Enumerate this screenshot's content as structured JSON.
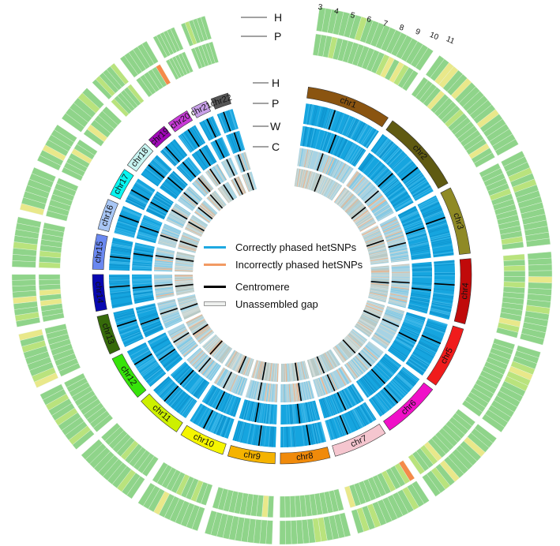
{
  "track_labels": {
    "outer_h": "H",
    "outer_p": "P",
    "inner_h": "H",
    "inner_p": "P",
    "inner_w": "W",
    "inner_c": "C"
  },
  "scale_ticks": [
    "3",
    "4",
    "5",
    "6",
    "7",
    "8",
    "9",
    "10",
    "11"
  ],
  "chromosomes": [
    {
      "name": "chr1",
      "color": "#8a5410"
    },
    {
      "name": "chr2",
      "color": "#5f5a12"
    },
    {
      "name": "chr3",
      "color": "#8f8a25"
    },
    {
      "name": "chr4",
      "color": "#c00a0a"
    },
    {
      "name": "chr5",
      "color": "#f01c1c"
    },
    {
      "name": "chr6",
      "color": "#f010c8"
    },
    {
      "name": "chr7",
      "color": "#f5c6cf"
    },
    {
      "name": "chr8",
      "color": "#f08a0a"
    },
    {
      "name": "chr9",
      "color": "#f5b300"
    },
    {
      "name": "chr10",
      "color": "#f5f500"
    },
    {
      "name": "chr11",
      "color": "#cdf000"
    },
    {
      "name": "chr12",
      "color": "#36e30a"
    },
    {
      "name": "chr13",
      "color": "#366a0a"
    },
    {
      "name": "chr14",
      "color": "#0808b0"
    },
    {
      "name": "chr15",
      "color": "#6a88f0"
    },
    {
      "name": "chr16",
      "color": "#a8c6f5"
    },
    {
      "name": "chr17",
      "color": "#08f5f0"
    },
    {
      "name": "chr18",
      "color": "#c8f5f2"
    },
    {
      "name": "chr19",
      "color": "#a008b8"
    },
    {
      "name": "chr20",
      "color": "#c83ad8"
    },
    {
      "name": "chr21",
      "color": "#c8a0e8"
    },
    {
      "name": "chr22",
      "color": "#555555"
    }
  ],
  "legend": {
    "correct": {
      "label": "Correctly phased hetSNPs",
      "color": "#1ea9e1"
    },
    "incorrect": {
      "label": "Incorrectly phased hetSNPs",
      "color": "#f29a63"
    },
    "centromere": {
      "label": "Centromere",
      "color": "#000000"
    },
    "gap": {
      "label": "Unassembled gap",
      "color": "#eef0ee"
    }
  },
  "colors": {
    "heat_green": "#8fd48a",
    "heat_light": "#b9e37d",
    "heat_yellow": "#e9e88a",
    "heat_orange": "#f58a4a",
    "track_blue": "#16a5df",
    "track_grey": "#b9cac6"
  }
}
